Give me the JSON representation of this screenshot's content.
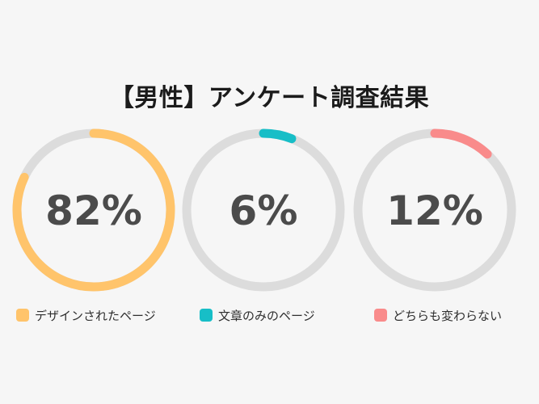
{
  "chart_data": {
    "type": "pie",
    "title": "【男性】アンケート調査結果",
    "slices": [
      {
        "label": "デザインされたページ",
        "value": 82,
        "display": "82%",
        "color": "#ffc46b"
      },
      {
        "label": "文章のみのページ",
        "value": 6,
        "display": "6%",
        "color": "#17bec7"
      },
      {
        "label": "どちらも変わらない",
        "value": 12,
        "display": "12%",
        "color": "#f98b8b"
      }
    ],
    "track_color": "#dcdcdc"
  }
}
